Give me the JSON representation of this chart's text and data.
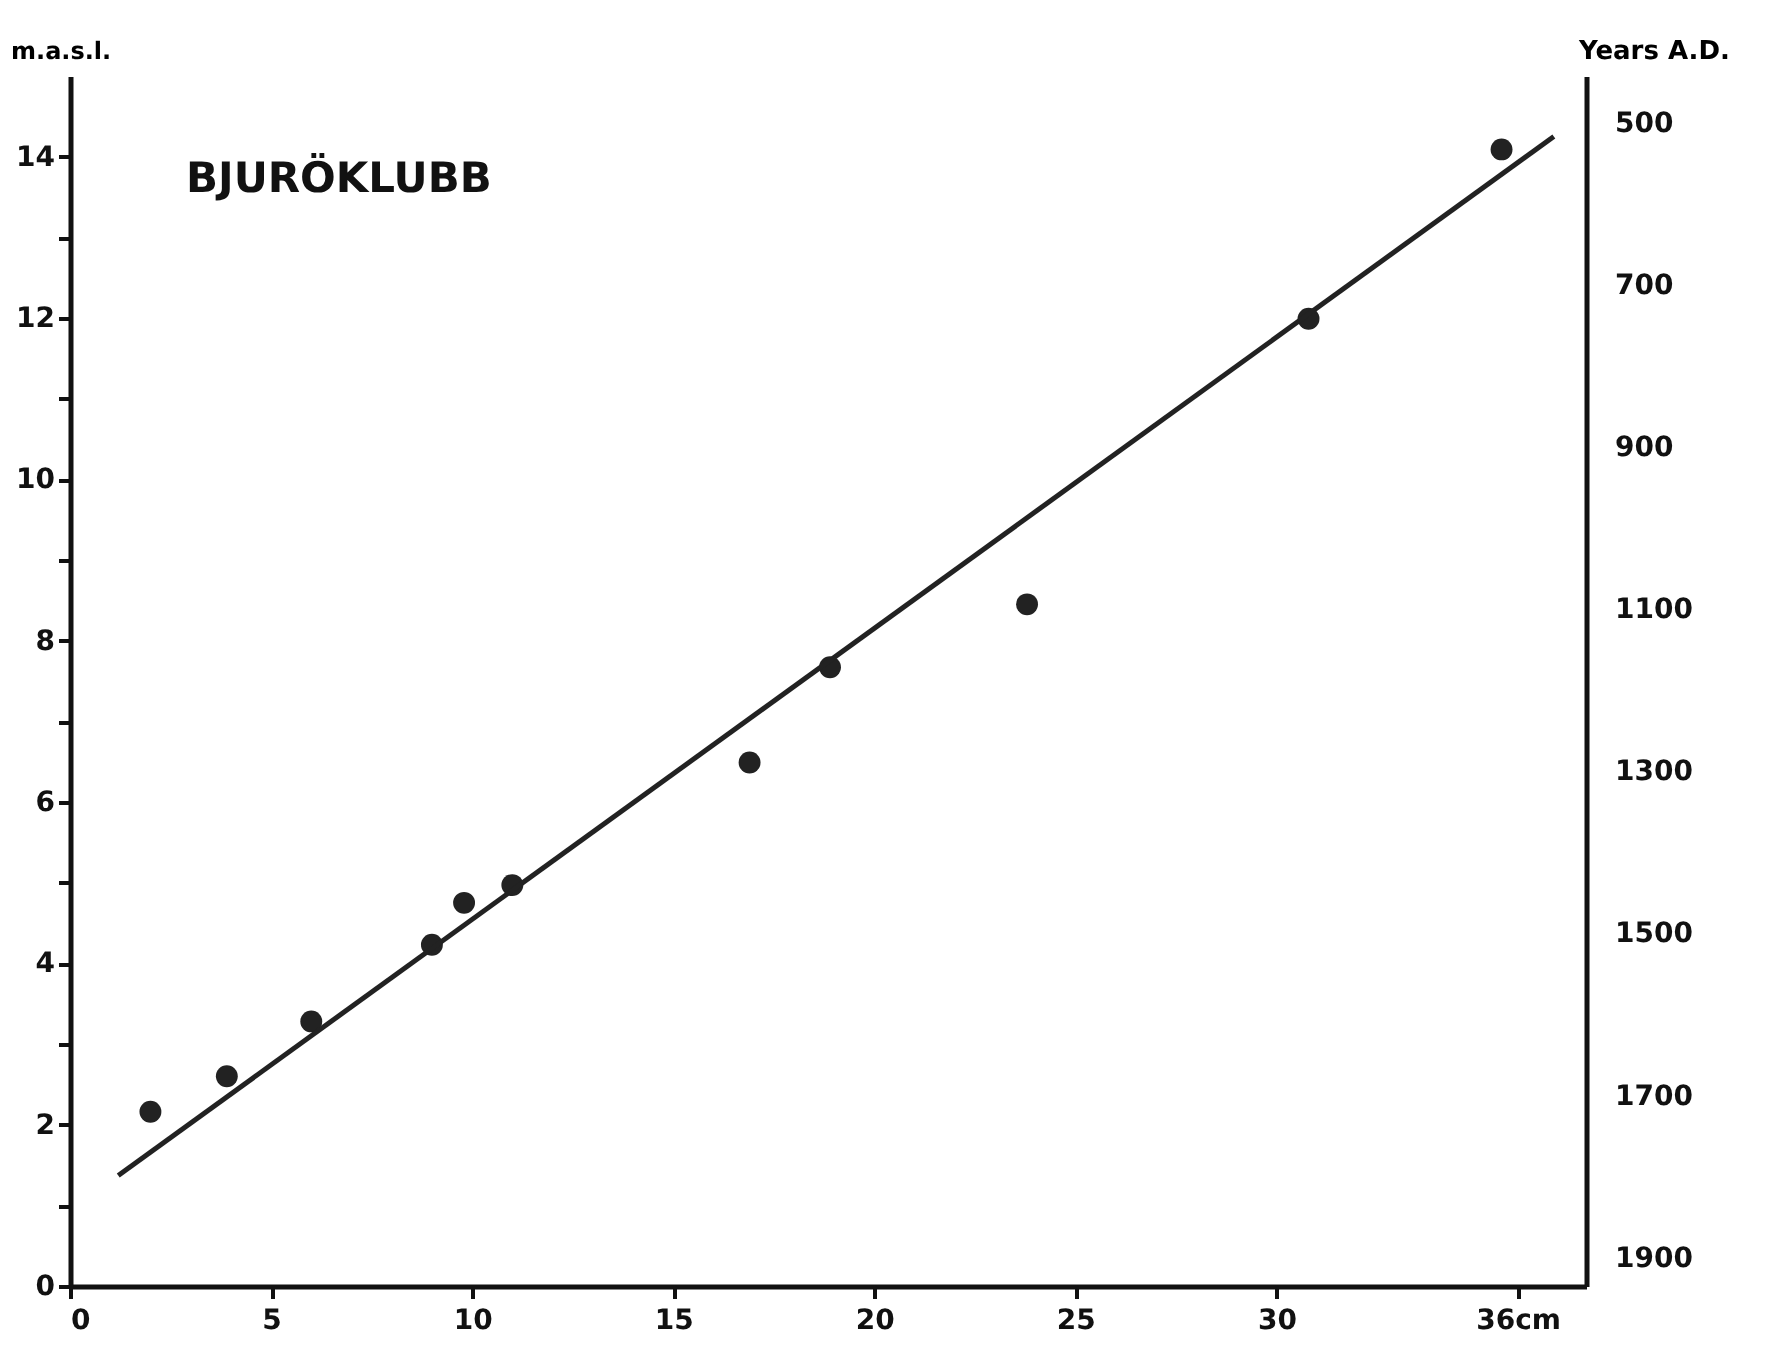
{
  "chart_data": {
    "type": "scatter",
    "title": "BJURÖKLUBB",
    "ylabel": "m.a.s.l.",
    "y2label": "Years A.D.",
    "xlim": [
      0,
      37.7
    ],
    "xticks": [
      0,
      5,
      10,
      15,
      20,
      25,
      30,
      {
        "value": 36,
        "label": "36cm"
      }
    ],
    "ylim": [
      0,
      15
    ],
    "yticks": [
      0,
      {
        "value": 1,
        "label": null
      },
      2,
      {
        "value": 3,
        "label": null
      },
      4,
      {
        "value": 5,
        "label": null
      },
      6,
      {
        "value": 7,
        "label": null
      },
      8,
      {
        "value": 9,
        "label": null
      },
      10,
      {
        "value": 11,
        "label": null
      },
      12,
      {
        "value": 13,
        "label": null
      },
      14
    ],
    "y2lim": [
      1935,
      442
    ],
    "y2ticks": [
      500,
      700,
      900,
      1100,
      1300,
      1500,
      1700,
      1900
    ],
    "grid": false,
    "marker": "circle",
    "series": [
      {
        "color": "#222222",
        "x": [
          2.0,
          3.9,
          6.0,
          9.0,
          9.8,
          11.0,
          16.9,
          18.9,
          23.8,
          30.8,
          35.6
        ],
        "values": [
          2.16,
          2.6,
          3.28,
          4.23,
          4.75,
          4.97,
          6.49,
          7.67,
          8.45,
          11.99,
          14.09
        ]
      },
      {
        "type": "line",
        "marker": "none",
        "color": "#222222",
        "x": [
          1.2,
          36.9
        ],
        "values": [
          1.37,
          14.25
        ]
      }
    ]
  }
}
